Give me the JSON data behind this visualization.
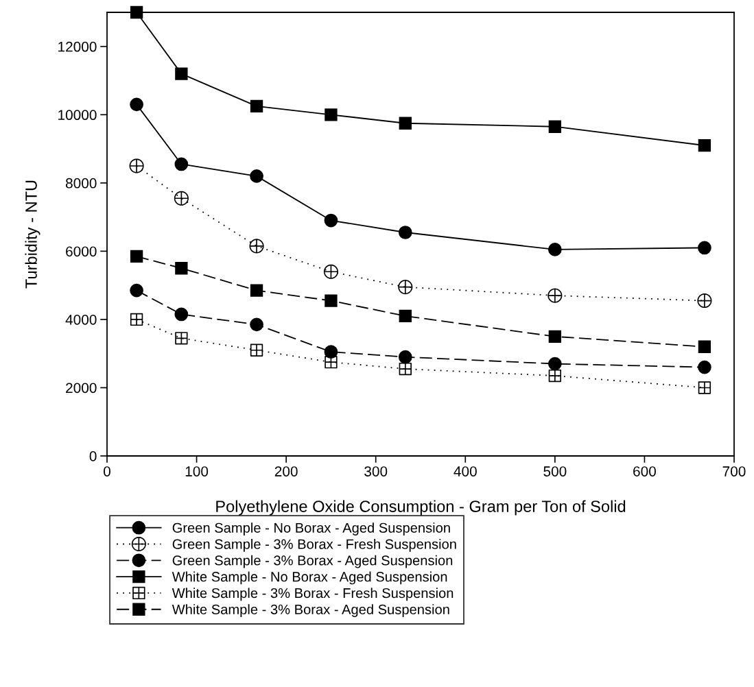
{
  "chart_data": {
    "type": "line",
    "xlabel": "Polyethylene Oxide Consumption - Gram per Ton of Solid",
    "ylabel": "Turbidity - NTU",
    "x": [
      33,
      83,
      167,
      250,
      333,
      500,
      667
    ],
    "xlim": [
      0,
      700
    ],
    "xticks": [
      0,
      100,
      200,
      300,
      400,
      500,
      600,
      700
    ],
    "ylim": [
      0,
      13000
    ],
    "yticks": [
      0,
      2000,
      4000,
      6000,
      8000,
      10000,
      12000
    ],
    "grid": false,
    "legend": "bottom left",
    "series": [
      {
        "name": "Green Sample - No Borax - Aged Suspension",
        "color": "#000000",
        "marker": "circle",
        "line_style": "solid",
        "values": [
          10300,
          8550,
          8200,
          6900,
          6550,
          6050,
          6100
        ]
      },
      {
        "name": "Green Sample - 3% Borax - Fresh Suspension",
        "color": "#000000",
        "marker": "circle",
        "line_style": "dotted",
        "values": [
          8500,
          7550,
          6150,
          5400,
          4950,
          4700,
          4550
        ]
      },
      {
        "name": "Green Sample - 3% Borax - Aged Suspension",
        "color": "#000000",
        "marker": "circle",
        "line_style": "dashed",
        "values": [
          4850,
          4150,
          3850,
          3050,
          2900,
          2700,
          2600
        ]
      },
      {
        "name": "White Sample - No Borax - Aged Suspension",
        "color": "#000000",
        "marker": "square",
        "line_style": "solid",
        "values": [
          13000,
          11200,
          10250,
          10000,
          9750,
          9650,
          9100
        ]
      },
      {
        "name": "White Sample - 3% Borax - Fresh Suspension",
        "color": "#000000",
        "marker": "square",
        "line_style": "dotted",
        "values": [
          4000,
          3450,
          3100,
          2750,
          2550,
          2350,
          2000
        ]
      },
      {
        "name": "White Sample - 3% Borax - Aged Suspension",
        "color": "#000000",
        "marker": "square",
        "line_style": "dashed",
        "values": [
          5850,
          5500,
          4850,
          4550,
          4100,
          3500,
          3200
        ]
      }
    ]
  }
}
